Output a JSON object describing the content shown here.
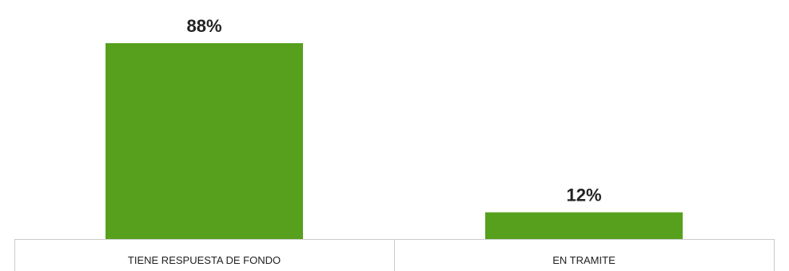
{
  "chart_data": {
    "type": "bar",
    "categories": [
      "TIENE RESPUESTA DE FONDO",
      "EN TRAMITE"
    ],
    "values": [
      88,
      12
    ],
    "data_labels": [
      "88%",
      "12%"
    ],
    "ylim": [
      0,
      88
    ],
    "grid": false,
    "legend": "none",
    "title": "",
    "xlabel": "",
    "ylabel": "",
    "colors": {
      "bar": "#56A01E",
      "axis": "#cccccc"
    }
  }
}
